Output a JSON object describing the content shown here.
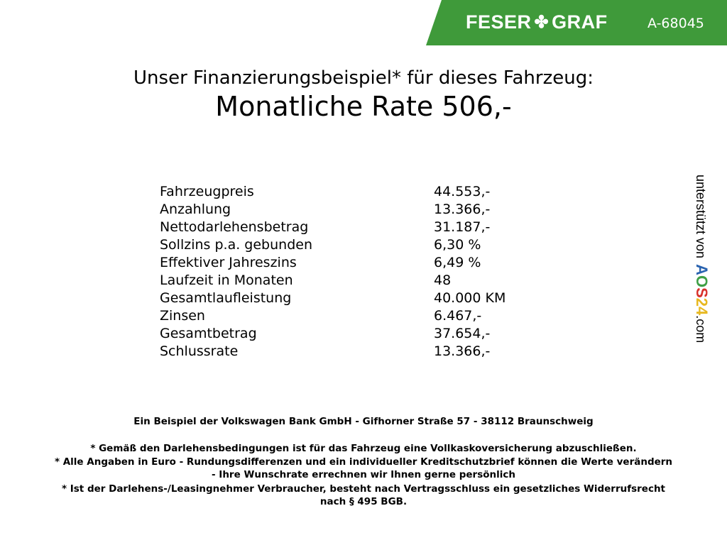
{
  "header": {
    "brand_left": "FESER",
    "brand_right": "GRAF",
    "vehicle_code": "A-68045",
    "brand_color": "#3f9a3a"
  },
  "title": "Unser Finanzierungsbeispiel* für dieses Fahrzeug:",
  "rate": "Monatliche Rate 506,-",
  "rows": [
    {
      "label": "Fahrzeugpreis",
      "value": "44.553,-"
    },
    {
      "label": "Anzahlung",
      "value": "13.366,-"
    },
    {
      "label": "Nettodarlehensbetrag",
      "value": "31.187,-"
    },
    {
      "label": "Sollzins p.a. gebunden",
      "value": "6,30 %"
    },
    {
      "label": "Effektiver Jahreszins",
      "value": "6,49 %"
    },
    {
      "label": "Laufzeit in Monaten",
      "value": "48"
    },
    {
      "label": "Gesamtlaufleistung",
      "value": "40.000 KM"
    },
    {
      "label": "Zinsen",
      "value": "6.467,-"
    },
    {
      "label": "Gesamtbetrag",
      "value": "37.654,-"
    },
    {
      "label": "Schlussrate",
      "value": "13.366,-"
    }
  ],
  "sidebar": {
    "supported_by": "unterstützt von",
    "aos": [
      "A",
      "O",
      "S",
      "2",
      "4"
    ],
    "aos_colors": [
      "#2a63b0",
      "#3fa046",
      "#d8312b",
      "#e7b820",
      "#e7b820"
    ],
    "domain": ".com"
  },
  "footer": {
    "bank": "Ein Beispiel der Volkswagen Bank GmbH - Gifhorner Straße 57 - 38112 Braunschweig",
    "notes": [
      "* Gemäß den Darlehensbedingungen ist für das Fahrzeug eine Vollkaskoversicherung abzuschließen.",
      "* Alle Angaben in Euro - Rundungsdifferenzen und ein individueller Kreditschutzbrief können die Werte verändern",
      "- Ihre Wunschrate errechnen wir Ihnen gerne persönlich",
      "* Ist der Darlehens-/Leasingnehmer Verbraucher, besteht nach Vertragsschluss ein gesetzliches Widerrufsrecht",
      "nach § 495 BGB."
    ]
  }
}
